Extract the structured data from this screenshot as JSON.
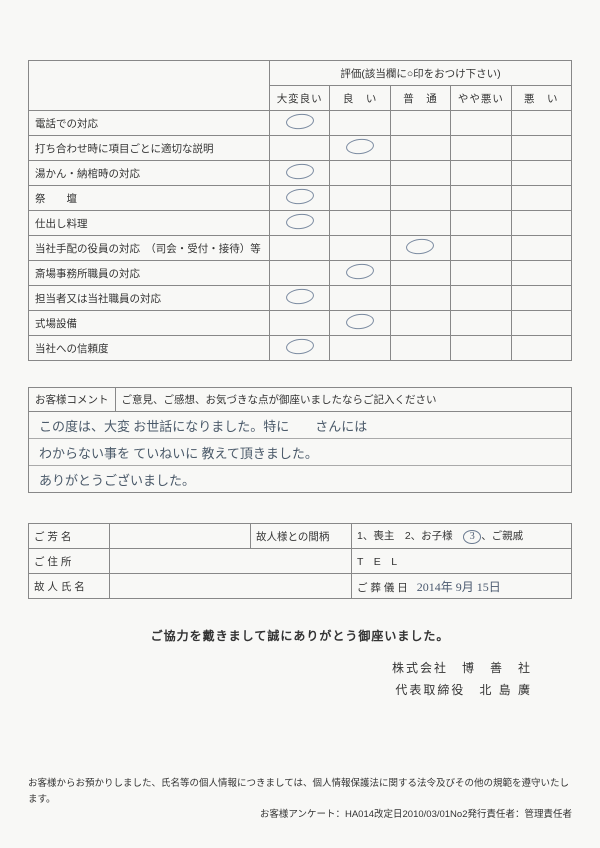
{
  "eval": {
    "header_title": "評価(該当欄に○印をおつけ下さい)",
    "ratings": [
      "大変良い",
      "良　い",
      "普　通",
      "やや悪い",
      "悪　い"
    ],
    "rows": [
      {
        "label": "電話での対応",
        "mark": 0
      },
      {
        "label": "打ち合わせ時に項目ごとに適切な説明",
        "mark": 1
      },
      {
        "label": "湯かん・納棺時の対応",
        "mark": 0
      },
      {
        "label": "祭　　壇",
        "mark": 0
      },
      {
        "label": "仕出し料理",
        "mark": 0
      },
      {
        "label": "当社手配の役員の対応　（司会・受付・接待）等",
        "mark": 2
      },
      {
        "label": "斎場事務所職員の対応",
        "mark": 1
      },
      {
        "label": "担当者又は当社職員の対応",
        "mark": 0
      },
      {
        "label": "式場設備",
        "mark": 1
      },
      {
        "label": "当社への信頼度",
        "mark": 0
      }
    ]
  },
  "comment": {
    "label": "お客様コメント",
    "sub": "ご意見、ご感想、お気づきな点が御座いましたならご記入ください",
    "lines": [
      "この度は、大変 お世話になりました。特に　　さんには",
      "わからない事を ていねいに 教えて頂きました。",
      "ありがとうございました。"
    ]
  },
  "info": {
    "name_label": "ご 芳 名",
    "relation_label": "故人様との間柄",
    "relation_value": "1、喪主　2、お子様　3、ご親戚",
    "relation_circled": "3",
    "addr_label": "ご 住 所",
    "tel_label": "T　E　L",
    "deceased_label": "故 人 氏 名",
    "funeral_label": "ご 葬 儀 日",
    "funeral_value": "2014年 9月 15日"
  },
  "thanks": "ご協力を戴きまして誠にありがとう御座いました。",
  "company": {
    "line1": "株式会社　博　善　社",
    "line2": "代表取締役　北 島 廣"
  },
  "footer": {
    "l1": "お客様からお預かりしました、氏名等の個人情報につきましては、個人情報保護法に関する法令及びその他の規範を遵守いたします。",
    "l2": "お客様アンケート：HA014改定日2010/03/01No2発行責任者：管理責任者"
  }
}
